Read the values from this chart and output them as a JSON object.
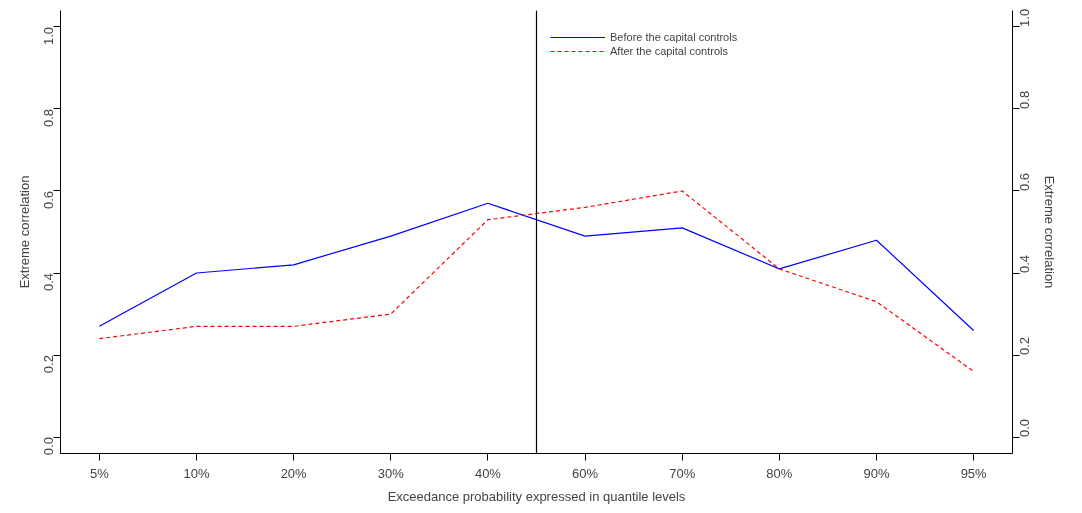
{
  "chart_data": {
    "type": "line",
    "xlabel": "Exceedance probability expressed in quantile levels",
    "ylabel": "Extreme correlation",
    "y2label": "Extreme correlation",
    "categories": [
      "5%",
      "10%",
      "20%",
      "30%",
      "40%",
      "60%",
      "70%",
      "80%",
      "90%",
      "95%"
    ],
    "series": [
      {
        "name": "Before the capital controls",
        "color": "#0000ff",
        "line_style": "solid",
        "values": [
          0.27,
          0.4,
          0.42,
          0.49,
          0.57,
          0.49,
          0.51,
          0.41,
          0.48,
          0.26
        ]
      },
      {
        "name": "After the capital controls",
        "color": "#ff0000",
        "line_style": "dashed",
        "values": [
          0.24,
          0.27,
          0.27,
          0.3,
          0.53,
          0.56,
          0.6,
          0.41,
          0.33,
          0.16
        ]
      }
    ],
    "ylim": [
      -0.04,
      1.04
    ],
    "yticks": [
      {
        "value": 0,
        "label": "0.0"
      },
      0.2,
      0.4,
      0.6,
      0.8,
      {
        "value": 1,
        "label": "1.0"
      }
    ],
    "y2lim": [
      -0.04,
      1.04
    ],
    "y2ticks": [
      {
        "value": 0,
        "label": "0.0"
      },
      0.2,
      0.4,
      0.6,
      0.8,
      {
        "value": 1,
        "label": "1.0"
      }
    ],
    "grid": false,
    "legend": "top",
    "marker": "none"
  }
}
